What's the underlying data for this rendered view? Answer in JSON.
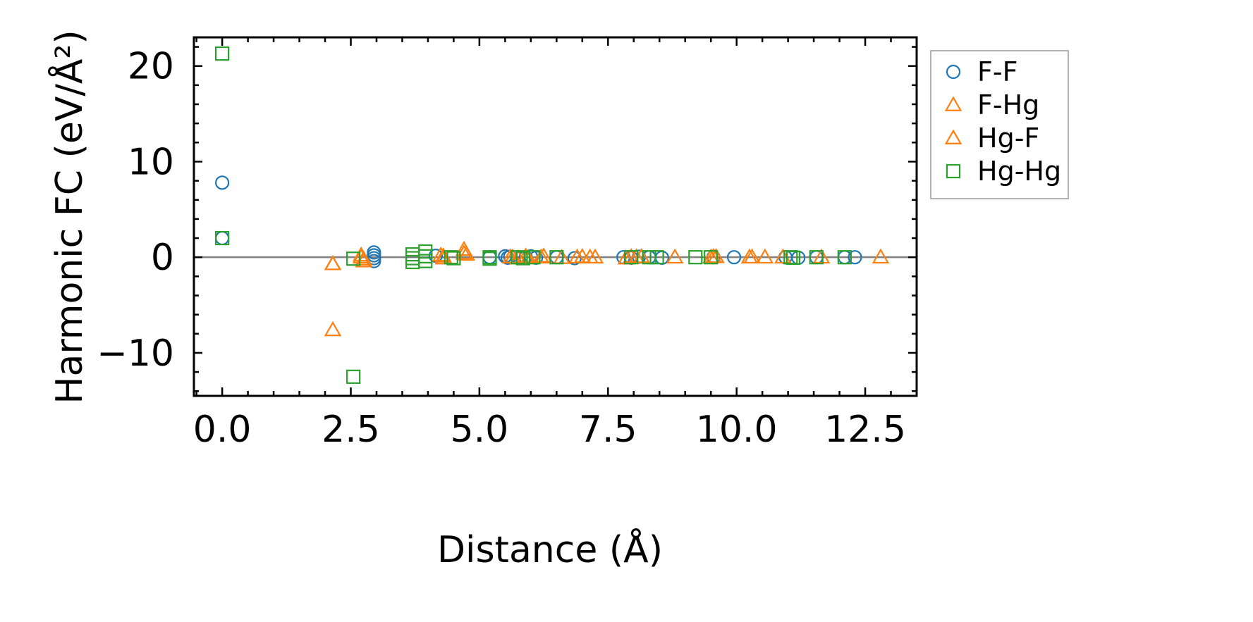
{
  "chart_data": {
    "type": "scatter",
    "title": "",
    "xlabel": "Distance (Å)",
    "ylabel": "Harmonic FC (eV/Å²)",
    "xlim": [
      -0.55,
      13.5
    ],
    "ylim": [
      -14.5,
      23.0
    ],
    "xticks": [
      0.0,
      2.5,
      5.0,
      7.5,
      10.0,
      12.5
    ],
    "xtick_labels": [
      "0.0",
      "2.5",
      "5.0",
      "7.5",
      "10.0",
      "12.5"
    ],
    "yticks": [
      -10,
      0,
      10,
      20
    ],
    "ytick_labels": [
      "−10",
      "0",
      "10",
      "20"
    ],
    "hline": 0,
    "legend_position": "outside-right",
    "series": [
      {
        "name": "F-F",
        "marker": "circle",
        "color": "#1f77b4",
        "x": [
          0.0,
          0.0,
          2.95,
          2.95,
          2.95,
          2.95,
          4.15,
          5.2,
          5.5,
          5.55,
          5.6,
          5.9,
          6.0,
          6.1,
          6.5,
          6.85,
          7.8,
          7.95,
          8.1,
          8.3,
          8.55,
          9.55,
          9.95,
          10.95,
          11.2,
          11.55,
          12.1,
          12.3
        ],
        "y": [
          7.8,
          2.0,
          0.5,
          0.2,
          -0.1,
          -0.4,
          0.15,
          0.0,
          0.1,
          -0.05,
          0.05,
          0.0,
          0.1,
          -0.05,
          0.0,
          -0.1,
          0.0,
          -0.05,
          0.05,
          0.0,
          -0.05,
          0.0,
          0.0,
          0.0,
          -0.05,
          0.0,
          0.0,
          0.0
        ]
      },
      {
        "name": "F-Hg",
        "marker": "triangle",
        "color": "#ff7f0e",
        "x": [
          2.15,
          2.15,
          2.7,
          2.75,
          4.25,
          4.3,
          4.7,
          4.75,
          5.6,
          5.75,
          5.9,
          6.2,
          6.6,
          6.9,
          7.0,
          7.25,
          7.85,
          8.05,
          8.15,
          8.8,
          9.5,
          9.55,
          10.25,
          10.55,
          10.9,
          11.65,
          12.8
        ],
        "y": [
          -7.6,
          -0.7,
          0.2,
          -0.4,
          0.2,
          -0.1,
          0.8,
          0.3,
          0.0,
          -0.1,
          0.1,
          0.0,
          -0.05,
          0.0,
          0.05,
          0.0,
          -0.1,
          0.0,
          0.05,
          0.0,
          0.0,
          0.05,
          0.0,
          0.0,
          0.0,
          0.0,
          0.0
        ]
      },
      {
        "name": "Hg-F",
        "marker": "triangle",
        "color": "#ff7f0e",
        "x": [
          2.15,
          2.7,
          2.75,
          4.3,
          4.7,
          5.65,
          5.95,
          6.25,
          7.15,
          7.95,
          9.6,
          10.3
        ],
        "y": [
          -0.7,
          0.0,
          -0.2,
          0.1,
          0.4,
          0.0,
          -0.05,
          0.1,
          0.0,
          0.05,
          0.05,
          0.0
        ]
      },
      {
        "name": "Hg-Hg",
        "marker": "square",
        "color": "#2ca02c",
        "x": [
          0.0,
          0.0,
          2.55,
          2.55,
          3.7,
          3.7,
          3.7,
          3.95,
          3.95,
          3.95,
          4.45,
          4.5,
          5.2,
          5.2,
          5.75,
          5.85,
          6.05,
          6.5,
          7.95,
          8.3,
          8.45,
          9.2,
          9.5,
          11.05,
          11.1,
          11.55,
          12.1
        ],
        "y": [
          21.3,
          2.0,
          -12.5,
          -0.15,
          0.3,
          -0.1,
          -0.5,
          0.6,
          0.1,
          -0.4,
          0.0,
          -0.1,
          0.0,
          -0.15,
          0.0,
          -0.1,
          0.0,
          0.0,
          0.0,
          0.0,
          0.0,
          0.0,
          0.0,
          0.0,
          -0.05,
          0.0,
          0.0
        ]
      }
    ]
  }
}
